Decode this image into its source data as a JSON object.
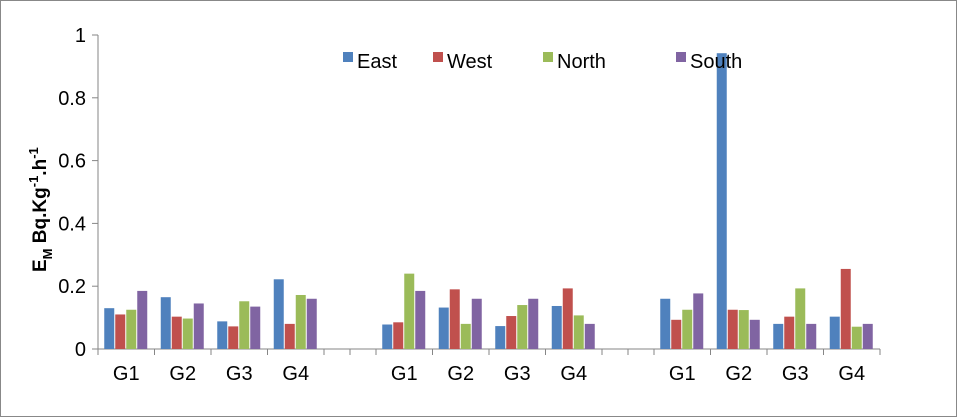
{
  "chart_data": {
    "type": "bar",
    "title": "",
    "xlabel": "",
    "ylabel": {
      "base": "E",
      "base_sub": "M",
      "unit_1": " Bq.Kg",
      "unit_1_sup": "-1",
      "unit_2": ".h",
      "unit_2_sup": "-1"
    },
    "ylim": [
      0,
      1
    ],
    "yticks": [
      "0",
      "0.2",
      "0.4",
      "0.6",
      "0.8",
      "1"
    ],
    "ytick_values": [
      0,
      0.2,
      0.4,
      0.6,
      0.8,
      1
    ],
    "grid": false,
    "legend_position": "top-center",
    "categories": [
      "G1",
      "G2",
      "G3",
      "G4",
      "G1",
      "G2",
      "G3",
      "G4",
      "G1",
      "G2",
      "G3",
      "G4"
    ],
    "category_blocks": [
      4,
      4,
      4
    ],
    "series": [
      {
        "name": "East",
        "color": "#4F81BD",
        "values": [
          0.13,
          0.165,
          0.088,
          0.222,
          0.078,
          0.132,
          0.073,
          0.137,
          0.16,
          0.942,
          0.08,
          0.103
        ]
      },
      {
        "name": "West",
        "color": "#C0504D",
        "values": [
          0.11,
          0.103,
          0.072,
          0.08,
          0.085,
          0.19,
          0.105,
          0.193,
          0.093,
          0.125,
          0.103,
          0.255
        ]
      },
      {
        "name": "North",
        "color": "#9BBB59",
        "values": [
          0.125,
          0.097,
          0.152,
          0.172,
          0.24,
          0.08,
          0.14,
          0.107,
          0.125,
          0.124,
          0.193,
          0.071
        ]
      },
      {
        "name": "South",
        "color": "#8064A2",
        "values": [
          0.185,
          0.145,
          0.135,
          0.16,
          0.185,
          0.16,
          0.16,
          0.08,
          0.177,
          0.093,
          0.08,
          0.08
        ]
      }
    ]
  }
}
